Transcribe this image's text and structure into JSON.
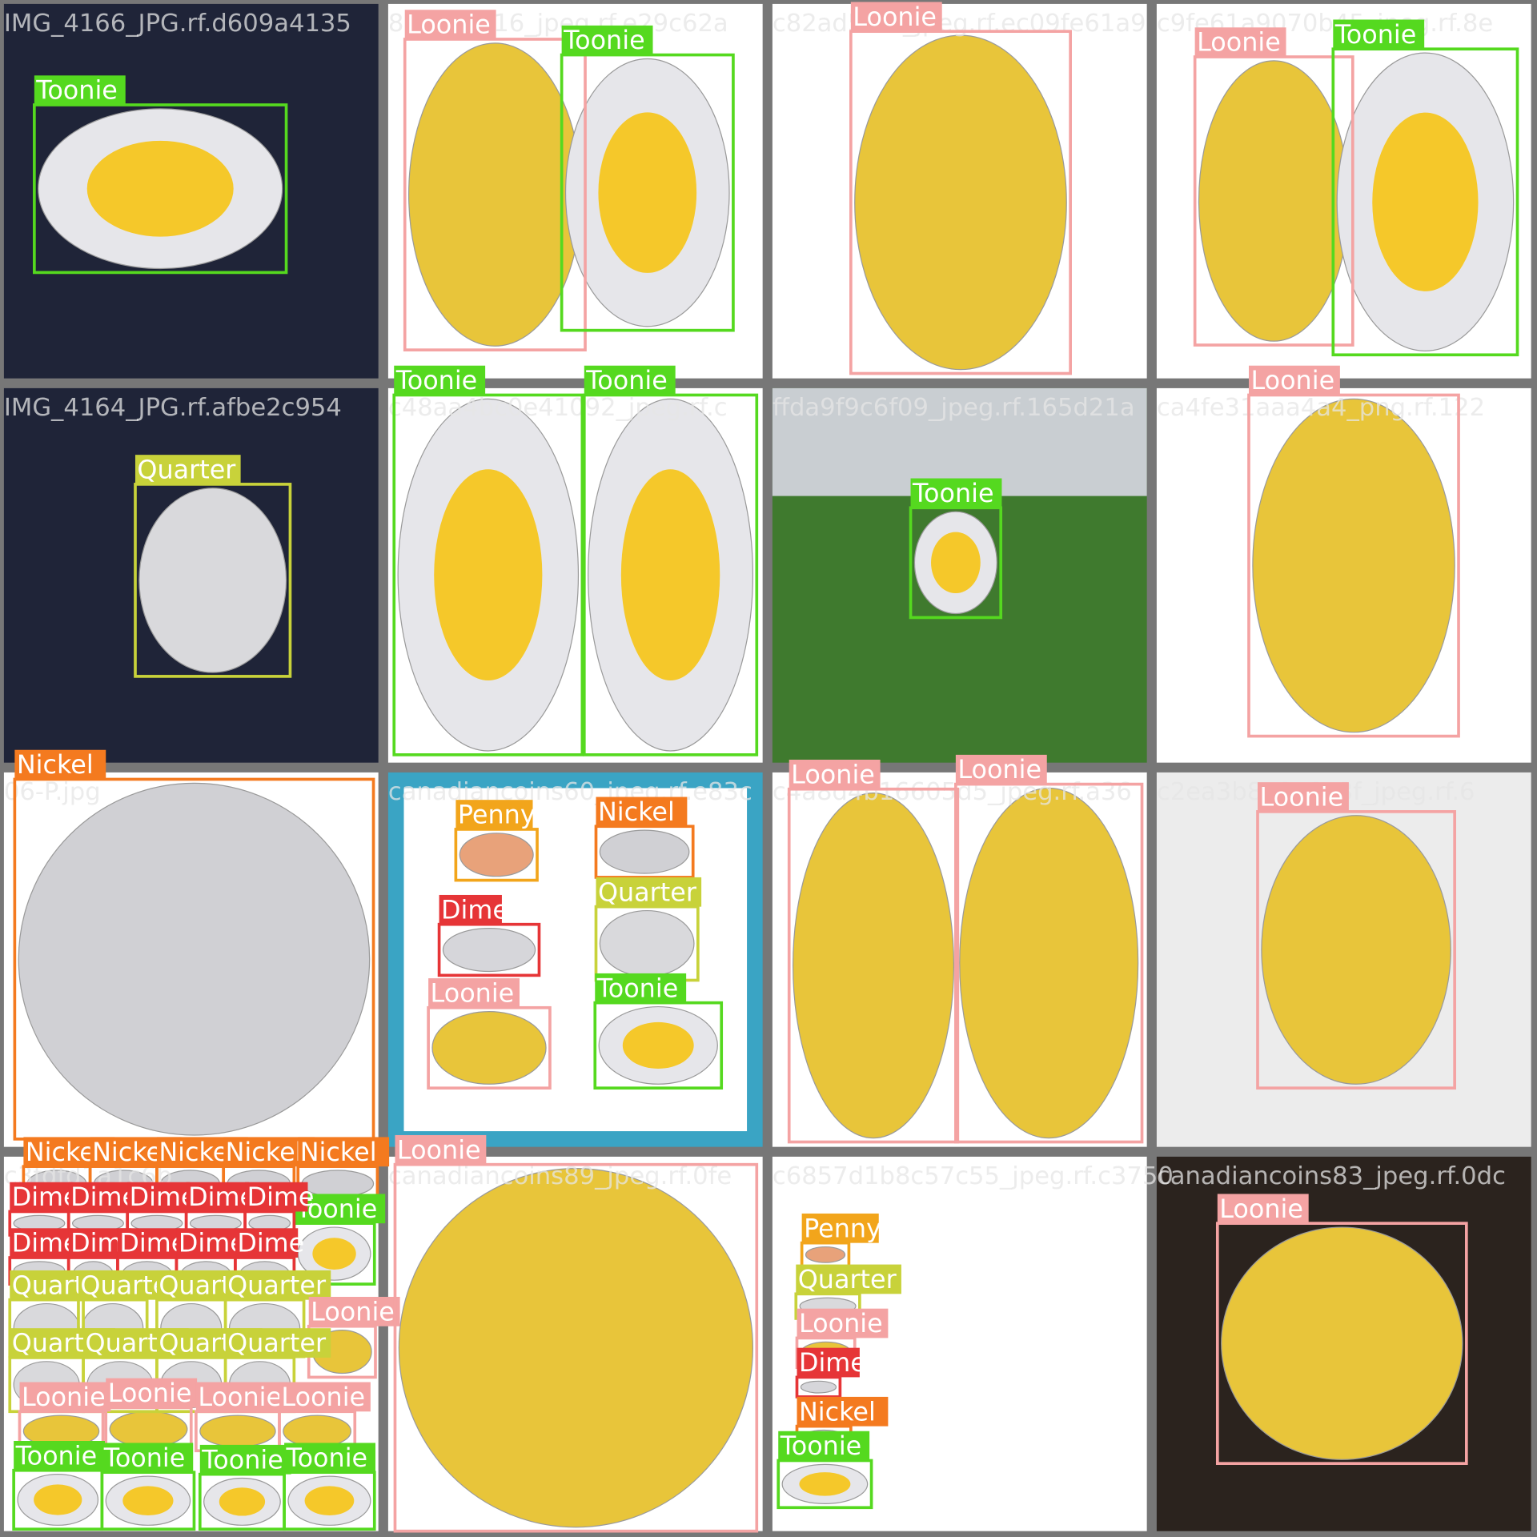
{
  "tiles": [
    {
      "filename": "IMG_4166_JPG.rf.d609a4135",
      "boxes": [
        {
          "label": "Toonie"
        }
      ]
    },
    {
      "filename": "86a245_16_jpeg.rf.e29c62a",
      "boxes": [
        {
          "label": "Loonie"
        },
        {
          "label": "Toonie"
        }
      ]
    },
    {
      "filename": "c82ad5f62_jpeg.rf.ec09fe61a9",
      "boxes": [
        {
          "label": "Loonie"
        }
      ]
    },
    {
      "filename": "c9fe61a9070b45_jpeg.rf.8e",
      "boxes": [
        {
          "label": "Loonie"
        },
        {
          "label": "Toonie"
        }
      ]
    },
    {
      "filename": "IMG_4164_JPG.rf.afbe2c954",
      "boxes": [
        {
          "label": "Quarter"
        }
      ]
    },
    {
      "filename": "c48aa4bc0e41092_jpeg.rf.c",
      "boxes": [
        {
          "label": "Toonie"
        },
        {
          "label": "Toonie"
        }
      ]
    },
    {
      "filename": "ffda9f9c6f09_jpeg.rf.165d21a",
      "boxes": [
        {
          "label": "Toonie"
        }
      ]
    },
    {
      "filename": "ca4fe31aaa4a4_png.rf.122",
      "boxes": [
        {
          "label": "Loonie"
        }
      ]
    },
    {
      "filename": "06-P.jpg",
      "boxes": [
        {
          "label": "Nickel"
        }
      ]
    },
    {
      "filename": "canadiancoins60_jpeg.rf.e83c",
      "boxes": [
        {
          "label": "Penny"
        },
        {
          "label": "Nickel"
        },
        {
          "label": "Quarter"
        },
        {
          "label": "Dime"
        },
        {
          "label": "Loonie"
        },
        {
          "label": "Toonie"
        }
      ]
    },
    {
      "filename": "c4a8d4b16605d5_jpeg.rf.a36",
      "boxes": [
        {
          "label": "Loonie"
        },
        {
          "label": "Loonie"
        }
      ]
    },
    {
      "filename": "c2ea3b8e0c6e8f_jpeg.rf.6",
      "boxes": [
        {
          "label": "Loonie"
        }
      ]
    },
    {
      "filename": "c3fdfd1a1c6b",
      "boxes": [
        {
          "label": "Nickel"
        },
        {
          "label": "Nickel"
        },
        {
          "label": "Nickel"
        },
        {
          "label": "Nickel"
        },
        {
          "label": "Nickel"
        },
        {
          "label": "Toonie"
        },
        {
          "label": "Dime"
        },
        {
          "label": "Dime"
        },
        {
          "label": "Dime"
        },
        {
          "label": "Dime"
        },
        {
          "label": "Dime"
        },
        {
          "label": "Dime"
        },
        {
          "label": "Dime"
        },
        {
          "label": "Dime"
        },
        {
          "label": "Dime"
        },
        {
          "label": "Dime"
        },
        {
          "label": "Quarter"
        },
        {
          "label": "Quarter"
        },
        {
          "label": "Quarter"
        },
        {
          "label": "Quarter"
        },
        {
          "label": "Loonie"
        },
        {
          "label": "Quarter"
        },
        {
          "label": "Quarter"
        },
        {
          "label": "Quarter"
        },
        {
          "label": "Quarter"
        },
        {
          "label": "Loonie"
        },
        {
          "label": "Loonie"
        },
        {
          "label": "Loonie"
        },
        {
          "label": "Loonie"
        },
        {
          "label": "Toonie"
        },
        {
          "label": "Toonie"
        },
        {
          "label": "Toonie"
        },
        {
          "label": "Toonie"
        }
      ]
    },
    {
      "filename": "canadiancoins89_jpeg.rf.0fe",
      "boxes": [
        {
          "label": "Loonie"
        }
      ]
    },
    {
      "filename": "c6857d1b8c57c55_jpeg.rf.c3750",
      "boxes": [
        {
          "label": "Penny"
        },
        {
          "label": "Quarter"
        },
        {
          "label": "Loonie"
        },
        {
          "label": "Dime"
        },
        {
          "label": "Nickel"
        },
        {
          "label": "Toonie"
        }
      ]
    },
    {
      "filename": "canadiancoins83_jpeg.rf.0dc",
      "boxes": [
        {
          "label": "Loonie"
        }
      ]
    }
  ]
}
